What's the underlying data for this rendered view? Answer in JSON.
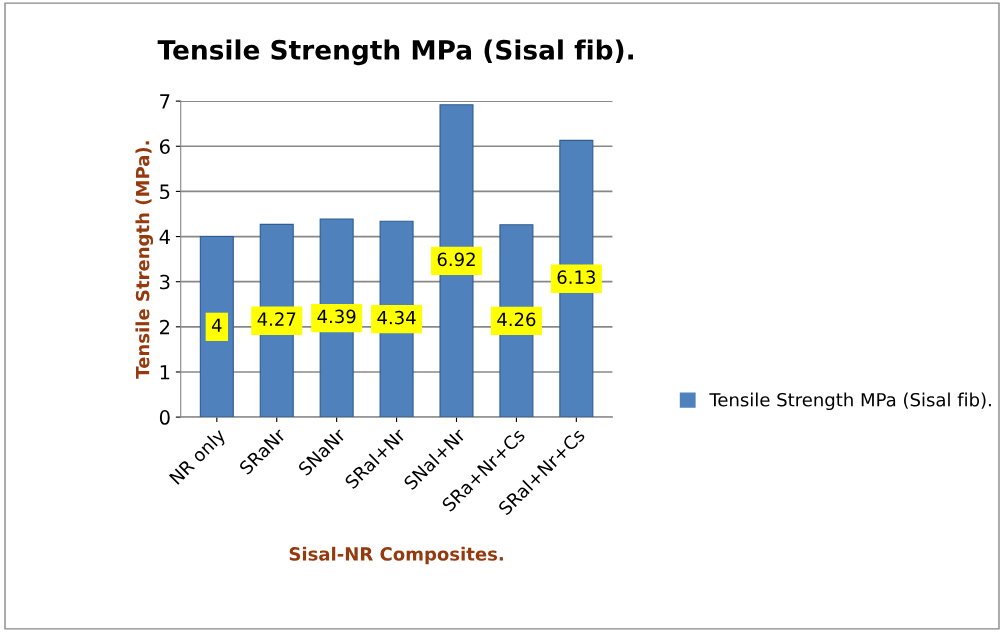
{
  "chart_data": {
    "type": "bar",
    "title": "Tensile Strength MPa (Sisal fib).",
    "xlabel": "Sisal-NR Composites.",
    "ylabel": "Tensile Strength (MPa).",
    "categories": [
      "NR only",
      "SRaNr",
      "SNaNr",
      "SRal+Nr",
      "SNal+Nr",
      "SRa+Nr+Cs",
      "SRal+Nr+Cs"
    ],
    "series": [
      {
        "name": "Tensile Strength MPa (Sisal fib).",
        "color": "#4f81bd",
        "values": [
          4,
          4.27,
          4.39,
          4.34,
          6.92,
          4.26,
          6.13
        ]
      }
    ],
    "ylim": [
      0,
      7
    ],
    "yticks": [
      0,
      1,
      2,
      3,
      4,
      5,
      6,
      7
    ],
    "grid": "y",
    "legend": "right",
    "data_labels": true
  }
}
